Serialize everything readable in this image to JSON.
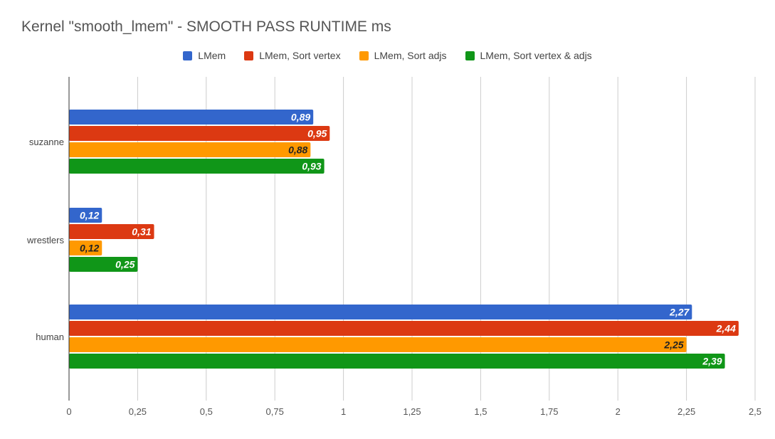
{
  "chart_data": {
    "type": "bar",
    "orientation": "horizontal",
    "title": "Kernel \"smooth_lmem\" - SMOOTH PASS RUNTIME ms",
    "categories": [
      "suzanne",
      "wrestlers",
      "human"
    ],
    "series": [
      {
        "name": "LMem",
        "color": "#3366cc",
        "values": [
          0.89,
          0.12,
          2.27
        ],
        "labels": [
          "0,89",
          "0,12",
          "2,27"
        ],
        "label_color": "#ffffff"
      },
      {
        "name": "LMem, Sort vertex",
        "color": "#dc3912",
        "values": [
          0.95,
          0.31,
          2.44
        ],
        "labels": [
          "0,95",
          "0,31",
          "2,44"
        ],
        "label_color": "#ffffff"
      },
      {
        "name": "LMem, Sort adjs",
        "color": "#ff9900",
        "values": [
          0.88,
          0.12,
          2.25
        ],
        "labels": [
          "0,88",
          "0,12",
          "2,25"
        ],
        "label_color": "#222222"
      },
      {
        "name": "LMem, Sort vertex & adjs",
        "color": "#109618",
        "values": [
          0.93,
          0.25,
          2.39
        ],
        "labels": [
          "0,93",
          "0,25",
          "2,39"
        ],
        "label_color": "#ffffff"
      }
    ],
    "xlim": [
      0,
      2.5
    ],
    "xticks": [
      0,
      0.25,
      0.5,
      0.75,
      1,
      1.25,
      1.5,
      1.75,
      2,
      2.25,
      2.5
    ],
    "xtick_labels": [
      "0",
      "0,25",
      "0,5",
      "0,75",
      "1",
      "1,25",
      "1,5",
      "1,75",
      "2",
      "2,25",
      "2,5"
    ],
    "grid": true,
    "legend_position": "top"
  }
}
